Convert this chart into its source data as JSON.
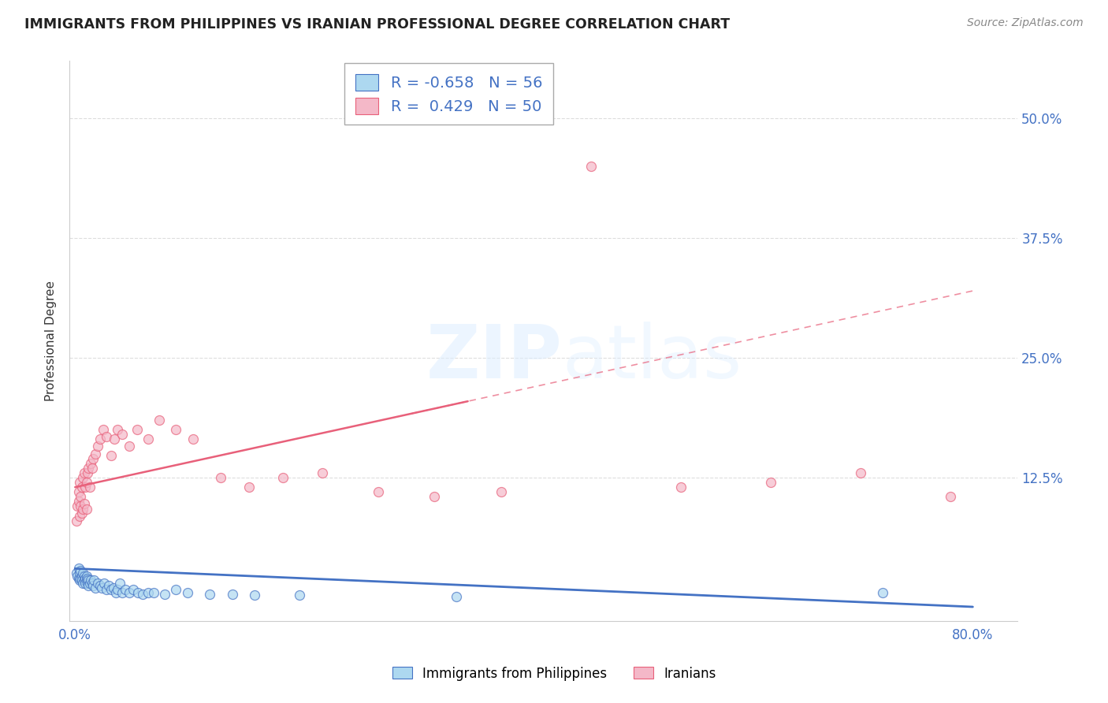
{
  "title": "IMMIGRANTS FROM PHILIPPINES VS IRANIAN PROFESSIONAL DEGREE CORRELATION CHART",
  "source": "Source: ZipAtlas.com",
  "ylabel": "Professional Degree",
  "y_tick_labels": [
    "12.5%",
    "25.0%",
    "37.5%",
    "50.0%"
  ],
  "y_tick_vals": [
    0.125,
    0.25,
    0.375,
    0.5
  ],
  "xlim": [
    -0.005,
    0.84
  ],
  "ylim": [
    -0.025,
    0.56
  ],
  "blue_color": "#ADD8F0",
  "pink_color": "#F4B8C8",
  "blue_line_color": "#4472C4",
  "pink_line_color": "#E8607A",
  "legend_blue_label": "Immigrants from Philippines",
  "legend_pink_label": "Iranians",
  "r_blue": -0.658,
  "n_blue": 56,
  "r_pink": 0.429,
  "n_pink": 50,
  "blue_x": [
    0.001,
    0.002,
    0.003,
    0.003,
    0.004,
    0.004,
    0.005,
    0.005,
    0.006,
    0.006,
    0.007,
    0.007,
    0.008,
    0.008,
    0.009,
    0.009,
    0.01,
    0.01,
    0.011,
    0.011,
    0.012,
    0.012,
    0.013,
    0.014,
    0.015,
    0.016,
    0.017,
    0.018,
    0.02,
    0.022,
    0.024,
    0.026,
    0.028,
    0.03,
    0.032,
    0.034,
    0.036,
    0.038,
    0.04,
    0.042,
    0.045,
    0.048,
    0.052,
    0.056,
    0.06,
    0.065,
    0.07,
    0.08,
    0.09,
    0.1,
    0.12,
    0.14,
    0.16,
    0.2,
    0.34,
    0.72
  ],
  "blue_y": [
    0.025,
    0.022,
    0.03,
    0.02,
    0.025,
    0.018,
    0.028,
    0.02,
    0.022,
    0.018,
    0.025,
    0.015,
    0.022,
    0.018,
    0.02,
    0.015,
    0.022,
    0.018,
    0.015,
    0.02,
    0.018,
    0.012,
    0.015,
    0.018,
    0.015,
    0.012,
    0.018,
    0.01,
    0.015,
    0.012,
    0.01,
    0.015,
    0.008,
    0.012,
    0.008,
    0.01,
    0.005,
    0.008,
    0.015,
    0.005,
    0.008,
    0.005,
    0.008,
    0.005,
    0.003,
    0.005,
    0.005,
    0.003,
    0.008,
    0.005,
    0.003,
    0.003,
    0.002,
    0.002,
    0.001,
    0.005
  ],
  "pink_x": [
    0.001,
    0.002,
    0.003,
    0.003,
    0.004,
    0.004,
    0.005,
    0.005,
    0.006,
    0.006,
    0.007,
    0.007,
    0.008,
    0.008,
    0.009,
    0.01,
    0.01,
    0.011,
    0.012,
    0.013,
    0.014,
    0.015,
    0.016,
    0.018,
    0.02,
    0.022,
    0.025,
    0.028,
    0.032,
    0.035,
    0.038,
    0.042,
    0.048,
    0.055,
    0.065,
    0.075,
    0.09,
    0.105,
    0.13,
    0.155,
    0.185,
    0.22,
    0.27,
    0.32,
    0.38,
    0.46,
    0.54,
    0.62,
    0.7,
    0.78
  ],
  "pink_y": [
    0.08,
    0.095,
    0.1,
    0.11,
    0.085,
    0.12,
    0.095,
    0.105,
    0.115,
    0.088,
    0.125,
    0.092,
    0.13,
    0.098,
    0.115,
    0.12,
    0.092,
    0.13,
    0.135,
    0.115,
    0.14,
    0.135,
    0.145,
    0.15,
    0.158,
    0.165,
    0.175,
    0.168,
    0.148,
    0.165,
    0.175,
    0.17,
    0.158,
    0.175,
    0.165,
    0.185,
    0.175,
    0.165,
    0.125,
    0.115,
    0.125,
    0.13,
    0.11,
    0.105,
    0.11,
    0.45,
    0.115,
    0.12,
    0.13,
    0.105
  ],
  "pink_line_start_x": 0.0,
  "pink_line_start_y": 0.115,
  "pink_line_end_x": 0.8,
  "pink_line_end_y": 0.32,
  "blue_line_start_x": 0.0,
  "blue_line_start_y": 0.03,
  "blue_line_end_x": 0.8,
  "blue_line_end_y": -0.01,
  "dash_line_start_x": 0.3,
  "dash_line_start_y": 0.22,
  "dash_line_end_x": 0.8,
  "dash_line_end_y": 0.37,
  "watermark_zip": "ZIP",
  "watermark_atlas": "atlas",
  "background_color": "#FFFFFF",
  "grid_color": "#DDDDDD",
  "legend_text_color": "#4472C4",
  "title_color": "#222222",
  "axis_label_color": "#333333"
}
